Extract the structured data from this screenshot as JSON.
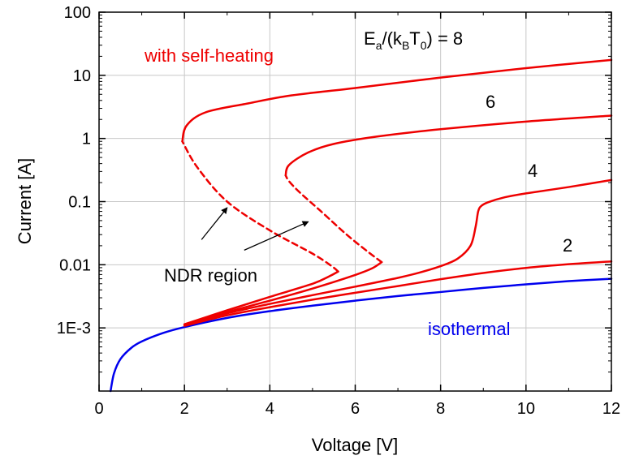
{
  "chart_data": {
    "type": "line",
    "xlabel": "Voltage [V]",
    "ylabel": "Current [A]",
    "xlim": [
      0,
      12
    ],
    "ylim": [
      0.0001,
      100
    ],
    "yscale": "log",
    "grid": true,
    "xticks": [
      {
        "v": 0,
        "label": "0"
      },
      {
        "v": 2,
        "label": "2"
      },
      {
        "v": 4,
        "label": "4"
      },
      {
        "v": 6,
        "label": "6"
      },
      {
        "v": 8,
        "label": "8"
      },
      {
        "v": 10,
        "label": "10"
      },
      {
        "v": 12,
        "label": "12"
      }
    ],
    "yticks": [
      {
        "v": 0.001,
        "label": "1E-3"
      },
      {
        "v": 0.01,
        "label": "0.01"
      },
      {
        "v": 0.1,
        "label": "0.1"
      },
      {
        "v": 1,
        "label": "1"
      },
      {
        "v": 10,
        "label": "10"
      },
      {
        "v": 100,
        "label": "100"
      }
    ],
    "series": [
      {
        "color": "#0000ee",
        "style": "solid",
        "points": [
          [
            0.27,
            0.0001
          ],
          [
            0.35,
            0.00019
          ],
          [
            0.5,
            0.00032
          ],
          [
            0.75,
            0.00048
          ],
          [
            1,
            0.00061
          ],
          [
            1.5,
            0.00083
          ],
          [
            2,
            0.00103
          ],
          [
            3,
            0.00144
          ],
          [
            4,
            0.00184
          ],
          [
            5,
            0.00225
          ],
          [
            6,
            0.0027
          ],
          [
            7,
            0.0032
          ],
          [
            8,
            0.0037
          ],
          [
            9,
            0.0043
          ],
          [
            10,
            0.0049
          ],
          [
            11,
            0.0055
          ],
          [
            12,
            0.006
          ]
        ]
      },
      {
        "color": "#ee0000",
        "style": "solid",
        "points": [
          [
            2,
            0.00108
          ],
          [
            3,
            0.00158
          ],
          [
            4,
            0.00213
          ],
          [
            5,
            0.0028
          ],
          [
            6,
            0.0036
          ],
          [
            7,
            0.0046
          ],
          [
            8,
            0.0059
          ],
          [
            9,
            0.0074
          ],
          [
            10,
            0.0089
          ],
          [
            11,
            0.0102
          ],
          [
            12,
            0.0113
          ]
        ]
      },
      {
        "color": "#ee0000",
        "style": "solid",
        "points": [
          [
            2,
            0.0011
          ],
          [
            3,
            0.0017
          ],
          [
            4,
            0.0024
          ],
          [
            5,
            0.0033
          ],
          [
            6,
            0.0045
          ],
          [
            7,
            0.0062
          ],
          [
            7.5,
            0.0075
          ],
          [
            8,
            0.0095
          ],
          [
            8.4,
            0.0125
          ],
          [
            8.7,
            0.02
          ],
          [
            8.82,
            0.04
          ],
          [
            8.88,
            0.07
          ],
          [
            8.95,
            0.085
          ],
          [
            9.1,
            0.097
          ],
          [
            9.5,
            0.117
          ],
          [
            10,
            0.135
          ],
          [
            11,
            0.17
          ],
          [
            12,
            0.22
          ]
        ]
      },
      {
        "color": "#ee0000",
        "style": "solid",
        "points": [
          [
            2,
            0.00112
          ],
          [
            3,
            0.00178
          ],
          [
            4,
            0.0027
          ],
          [
            5,
            0.0042
          ],
          [
            6,
            0.0069
          ],
          [
            6.4,
            0.0088
          ],
          [
            6.62,
            0.011
          ]
        ]
      },
      {
        "color": "#ee0000",
        "style": "dashed",
        "points": [
          [
            6.62,
            0.011
          ],
          [
            6.3,
            0.016
          ],
          [
            5.8,
            0.03
          ],
          [
            5.2,
            0.07
          ],
          [
            4.7,
            0.14
          ],
          [
            4.45,
            0.21
          ],
          [
            4.37,
            0.26
          ]
        ]
      },
      {
        "color": "#ee0000",
        "style": "solid",
        "points": [
          [
            4.37,
            0.26
          ],
          [
            4.45,
            0.38
          ],
          [
            4.9,
            0.6
          ],
          [
            5.5,
            0.82
          ],
          [
            6.5,
            1.07
          ],
          [
            8,
            1.4
          ],
          [
            10,
            1.85
          ],
          [
            12,
            2.3
          ]
        ]
      },
      {
        "color": "#ee0000",
        "style": "solid",
        "points": [
          [
            2,
            0.00114
          ],
          [
            3,
            0.0019
          ],
          [
            4,
            0.0031
          ],
          [
            5,
            0.005
          ],
          [
            5.4,
            0.0066
          ],
          [
            5.6,
            0.0078
          ]
        ]
      },
      {
        "color": "#ee0000",
        "style": "dashed",
        "points": [
          [
            5.6,
            0.0078
          ],
          [
            5.45,
            0.0095
          ],
          [
            5,
            0.015
          ],
          [
            4,
            0.035
          ],
          [
            3,
            0.1
          ],
          [
            2.3,
            0.35
          ],
          [
            1.95,
            0.9
          ]
        ]
      },
      {
        "color": "#ee0000",
        "style": "solid",
        "points": [
          [
            1.95,
            0.9
          ],
          [
            2.05,
            1.6
          ],
          [
            2.5,
            2.6
          ],
          [
            3.5,
            3.6
          ],
          [
            4.5,
            4.8
          ],
          [
            6,
            6.3
          ],
          [
            8,
            9.2
          ],
          [
            10,
            13
          ],
          [
            12,
            17.5
          ]
        ]
      }
    ],
    "annotations": {
      "self_heating": "with self-heating",
      "ea_label": {
        "E": "E",
        "a": "a",
        "mid": "/(k",
        "B": "B",
        "T": "T",
        "zero": "0",
        "end": ") = 8"
      },
      "label_6": "6",
      "label_4": "4",
      "label_2": "2",
      "ndr": "NDR region",
      "isothermal": "isothermal"
    },
    "arrows": [
      {
        "from": [
          2.4,
          0.025
        ],
        "to": [
          3.0,
          0.08
        ]
      },
      {
        "from": [
          3.4,
          0.017
        ],
        "to": [
          4.9,
          0.048
        ]
      }
    ]
  }
}
